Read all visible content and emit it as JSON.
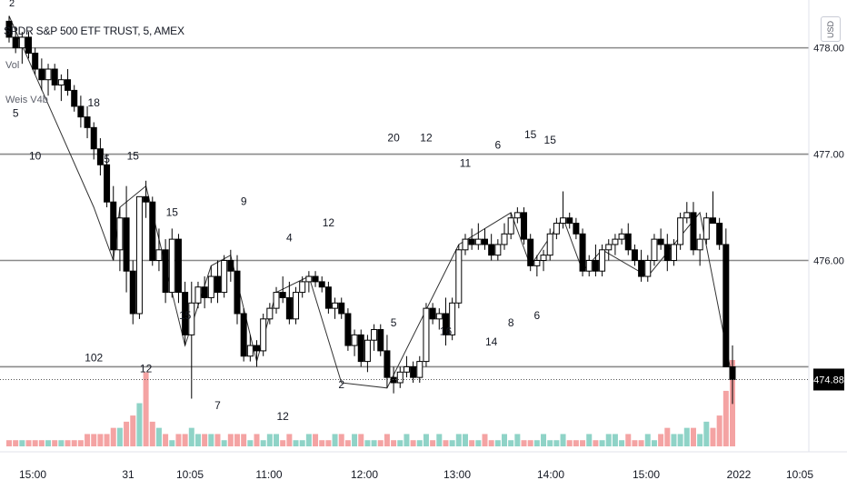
{
  "header": {
    "symbol_title": "SPDR S&P 500 ETF TRUST, 5, AMEX",
    "indicator_1": "Vol",
    "indicator_2": "Weis V4b",
    "currency": "USD",
    "top_label": "2"
  },
  "chart_data": {
    "type": "candlestick",
    "title": "SPDR S&P 500 ETF TRUST, 5, AMEX",
    "price_axis": {
      "ticks": [
        478.0,
        477.0,
        476.0
      ],
      "ylim": [
        474.2,
        478.45
      ],
      "last_price": "474.88"
    },
    "horizontal_levels": [
      478.0,
      477.0,
      476.0,
      475.0
    ],
    "time_axis": {
      "labels": [
        "15:00",
        "31",
        "10:05",
        "11:00",
        "12:00",
        "13:00",
        "14:00",
        "15:00",
        "2022",
        "10:05"
      ]
    },
    "candles": [
      [
        478.25,
        478.3,
        478.05,
        478.1
      ],
      [
        478.1,
        478.2,
        477.95,
        478.0
      ],
      [
        478.0,
        478.15,
        477.85,
        478.1
      ],
      [
        478.1,
        478.15,
        477.9,
        477.95
      ],
      [
        477.95,
        478.0,
        477.75,
        477.8
      ],
      [
        477.8,
        477.9,
        477.6,
        477.7
      ],
      [
        477.7,
        477.85,
        477.55,
        477.8
      ],
      [
        477.8,
        477.85,
        477.6,
        477.65
      ],
      [
        477.65,
        477.75,
        477.5,
        477.7
      ],
      [
        477.7,
        477.8,
        477.55,
        477.6
      ],
      [
        477.6,
        477.65,
        477.4,
        477.45
      ],
      [
        477.45,
        477.55,
        477.25,
        477.35
      ],
      [
        477.35,
        477.45,
        477.15,
        477.25
      ],
      [
        477.25,
        477.3,
        476.95,
        477.05
      ],
      [
        477.05,
        477.15,
        476.8,
        476.9
      ],
      [
        476.9,
        477.0,
        476.5,
        476.55
      ],
      [
        476.55,
        476.7,
        476.0,
        476.1
      ],
      [
        476.1,
        476.5,
        475.9,
        476.4
      ],
      [
        476.4,
        476.7,
        475.7,
        475.9
      ],
      [
        475.9,
        476.0,
        475.4,
        475.5
      ],
      [
        475.5,
        476.6,
        475.45,
        476.6
      ],
      [
        476.6,
        476.75,
        476.4,
        476.55
      ],
      [
        476.55,
        476.6,
        475.95,
        476.0
      ],
      [
        476.0,
        476.3,
        475.9,
        476.1
      ],
      [
        476.1,
        476.2,
        475.6,
        475.7
      ],
      [
        475.7,
        476.3,
        475.65,
        476.2
      ],
      [
        476.2,
        476.25,
        475.6,
        475.7
      ],
      [
        475.7,
        475.8,
        475.2,
        475.3
      ],
      [
        475.3,
        475.8,
        474.7,
        475.6
      ],
      [
        475.6,
        475.8,
        475.55,
        475.75
      ],
      [
        475.75,
        475.85,
        475.55,
        475.65
      ],
      [
        475.65,
        475.95,
        475.6,
        475.85
      ],
      [
        475.85,
        476.0,
        475.6,
        475.7
      ],
      [
        475.7,
        476.05,
        475.65,
        476.0
      ],
      [
        476.0,
        476.1,
        475.8,
        475.9
      ],
      [
        475.9,
        476.05,
        475.4,
        475.5
      ],
      [
        475.5,
        475.55,
        475.05,
        475.1
      ],
      [
        475.1,
        475.3,
        475.05,
        475.2
      ],
      [
        475.2,
        475.25,
        475.0,
        475.15
      ],
      [
        475.15,
        475.5,
        475.1,
        475.45
      ],
      [
        475.45,
        475.6,
        475.4,
        475.55
      ],
      [
        475.55,
        475.75,
        475.5,
        475.7
      ],
      [
        475.7,
        475.85,
        475.6,
        475.65
      ],
      [
        475.65,
        475.8,
        475.4,
        475.45
      ],
      [
        475.45,
        475.75,
        475.4,
        475.7
      ],
      [
        475.7,
        475.85,
        475.65,
        475.8
      ],
      [
        475.8,
        475.9,
        475.7,
        475.85
      ],
      [
        475.85,
        475.9,
        475.75,
        475.8
      ],
      [
        475.8,
        475.85,
        475.7,
        475.75
      ],
      [
        475.75,
        475.8,
        475.5,
        475.55
      ],
      [
        475.55,
        475.65,
        475.45,
        475.6
      ],
      [
        475.6,
        475.65,
        475.45,
        475.5
      ],
      [
        475.5,
        475.55,
        475.15,
        475.2
      ],
      [
        475.2,
        475.35,
        475.1,
        475.3
      ],
      [
        475.3,
        475.35,
        475.0,
        475.05
      ],
      [
        475.05,
        475.3,
        474.95,
        475.25
      ],
      [
        475.25,
        475.4,
        475.15,
        475.35
      ],
      [
        475.35,
        475.4,
        475.1,
        475.15
      ],
      [
        475.15,
        475.3,
        474.8,
        474.9
      ],
      [
        474.9,
        475.0,
        474.75,
        474.85
      ],
      [
        474.85,
        475.0,
        474.8,
        474.95
      ],
      [
        474.95,
        475.1,
        474.9,
        475.0
      ],
      [
        475.0,
        475.05,
        474.85,
        474.9
      ],
      [
        474.9,
        475.1,
        474.85,
        475.05
      ],
      [
        475.05,
        475.6,
        475.0,
        475.55
      ],
      [
        475.55,
        475.6,
        475.4,
        475.45
      ],
      [
        475.45,
        475.55,
        475.35,
        475.5
      ],
      [
        475.5,
        475.65,
        475.2,
        475.3
      ],
      [
        475.3,
        475.65,
        475.25,
        475.6
      ],
      [
        475.6,
        476.15,
        475.55,
        476.1
      ],
      [
        476.1,
        476.25,
        476.05,
        476.2
      ],
      [
        476.2,
        476.3,
        476.1,
        476.15
      ],
      [
        476.15,
        476.35,
        476.1,
        476.2
      ],
      [
        476.2,
        476.3,
        476.1,
        476.15
      ],
      [
        476.15,
        476.25,
        476.0,
        476.05
      ],
      [
        476.05,
        476.2,
        476.0,
        476.15
      ],
      [
        476.15,
        476.35,
        476.1,
        476.25
      ],
      [
        476.25,
        476.45,
        476.2,
        476.4
      ],
      [
        476.4,
        476.5,
        476.35,
        476.45
      ],
      [
        476.45,
        476.5,
        476.15,
        476.2
      ],
      [
        476.2,
        476.25,
        475.9,
        475.95
      ],
      [
        475.95,
        476.05,
        475.85,
        476.0
      ],
      [
        476.0,
        476.1,
        475.9,
        476.05
      ],
      [
        476.05,
        476.3,
        476.0,
        476.25
      ],
      [
        476.25,
        476.4,
        476.2,
        476.35
      ],
      [
        476.35,
        476.65,
        476.3,
        476.4
      ],
      [
        476.4,
        476.45,
        476.3,
        476.35
      ],
      [
        476.35,
        476.4,
        476.2,
        476.25
      ],
      [
        476.25,
        476.3,
        475.85,
        475.9
      ],
      [
        475.9,
        476.05,
        475.85,
        476.0
      ],
      [
        476.0,
        476.15,
        475.85,
        475.9
      ],
      [
        475.9,
        476.15,
        475.85,
        476.1
      ],
      [
        476.1,
        476.2,
        476.0,
        476.15
      ],
      [
        476.15,
        476.25,
        476.05,
        476.2
      ],
      [
        476.2,
        476.3,
        476.15,
        476.25
      ],
      [
        476.25,
        476.35,
        476.05,
        476.1
      ],
      [
        476.1,
        476.15,
        475.95,
        476.0
      ],
      [
        476.0,
        476.1,
        475.8,
        475.85
      ],
      [
        475.85,
        476.05,
        475.8,
        476.0
      ],
      [
        476.0,
        476.25,
        475.95,
        476.2
      ],
      [
        476.2,
        476.3,
        476.1,
        476.15
      ],
      [
        476.15,
        476.25,
        475.9,
        476.0
      ],
      [
        476.0,
        476.2,
        475.95,
        476.15
      ],
      [
        476.15,
        476.45,
        476.1,
        476.4
      ],
      [
        476.4,
        476.55,
        476.35,
        476.45
      ],
      [
        476.45,
        476.55,
        476.05,
        476.1
      ],
      [
        476.1,
        476.25,
        475.95,
        476.2
      ],
      [
        476.2,
        476.45,
        476.15,
        476.4
      ],
      [
        476.4,
        476.65,
        476.35,
        476.35
      ],
      [
        476.35,
        476.4,
        476.1,
        476.15
      ],
      [
        476.15,
        476.3,
        475.0,
        475.0
      ],
      [
        475.0,
        475.2,
        474.65,
        474.88
      ]
    ],
    "volume": [
      1,
      1,
      1,
      1,
      1,
      1,
      1,
      1,
      1,
      1,
      1,
      1,
      2,
      2,
      2,
      2,
      3,
      3,
      4,
      5,
      7,
      12,
      4,
      3,
      2,
      1,
      2,
      2,
      3,
      2,
      2,
      2,
      2,
      1,
      2,
      2,
      2,
      1,
      2,
      1,
      2,
      2,
      1,
      2,
      1,
      1,
      2,
      2,
      1,
      1,
      2,
      2,
      1,
      2,
      2,
      1,
      1,
      1,
      2,
      1,
      1,
      2,
      1,
      1,
      2,
      1,
      2,
      1,
      1,
      2,
      2,
      1,
      1,
      2,
      1,
      1,
      2,
      1,
      2,
      1,
      1,
      1,
      2,
      1,
      1,
      2,
      1,
      1,
      1,
      2,
      1,
      1,
      2,
      2,
      1,
      2,
      1,
      1,
      2,
      1,
      2,
      3,
      2,
      2,
      3,
      3,
      2,
      4,
      3,
      5,
      9,
      14
    ],
    "weis_labels": [
      {
        "text": "5",
        "i": 1,
        "p": 477.35
      },
      {
        "text": "10",
        "i": 4,
        "p": 476.95
      },
      {
        "text": "18",
        "i": 13,
        "p": 477.45
      },
      {
        "text": "12",
        "i": 21,
        "p": 474.95
      },
      {
        "text": "5",
        "i": 15,
        "p": 476.92
      },
      {
        "text": "15",
        "i": 19,
        "p": 476.95
      },
      {
        "text": "15",
        "i": 27,
        "p": 475.45
      },
      {
        "text": "15",
        "i": 25,
        "p": 476.42
      },
      {
        "text": "7",
        "i": 32,
        "p": 474.6
      },
      {
        "text": "9",
        "i": 36,
        "p": 476.52
      },
      {
        "text": "4",
        "i": 43,
        "p": 476.18
      },
      {
        "text": "12",
        "i": 42,
        "p": 474.5
      },
      {
        "text": "2",
        "i": 51,
        "p": 474.8
      },
      {
        "text": "12",
        "i": 49,
        "p": 476.32
      },
      {
        "text": "5",
        "i": 59,
        "p": 475.38
      },
      {
        "text": "20",
        "i": 59,
        "p": 477.12
      },
      {
        "text": "12",
        "i": 64,
        "p": 477.12
      },
      {
        "text": "16",
        "i": 67,
        "p": 475.3
      },
      {
        "text": "11",
        "i": 70,
        "p": 476.88
      },
      {
        "text": "6",
        "i": 75,
        "p": 477.05
      },
      {
        "text": "14",
        "i": 74,
        "p": 475.2
      },
      {
        "text": "8",
        "i": 77,
        "p": 475.38
      },
      {
        "text": "15",
        "i": 80,
        "p": 477.15
      },
      {
        "text": "6",
        "i": 81,
        "p": 475.45
      },
      {
        "text": "15",
        "i": 83,
        "p": 477.1
      },
      {
        "text": "102",
        "i": 13,
        "p": 475.05
      }
    ]
  }
}
